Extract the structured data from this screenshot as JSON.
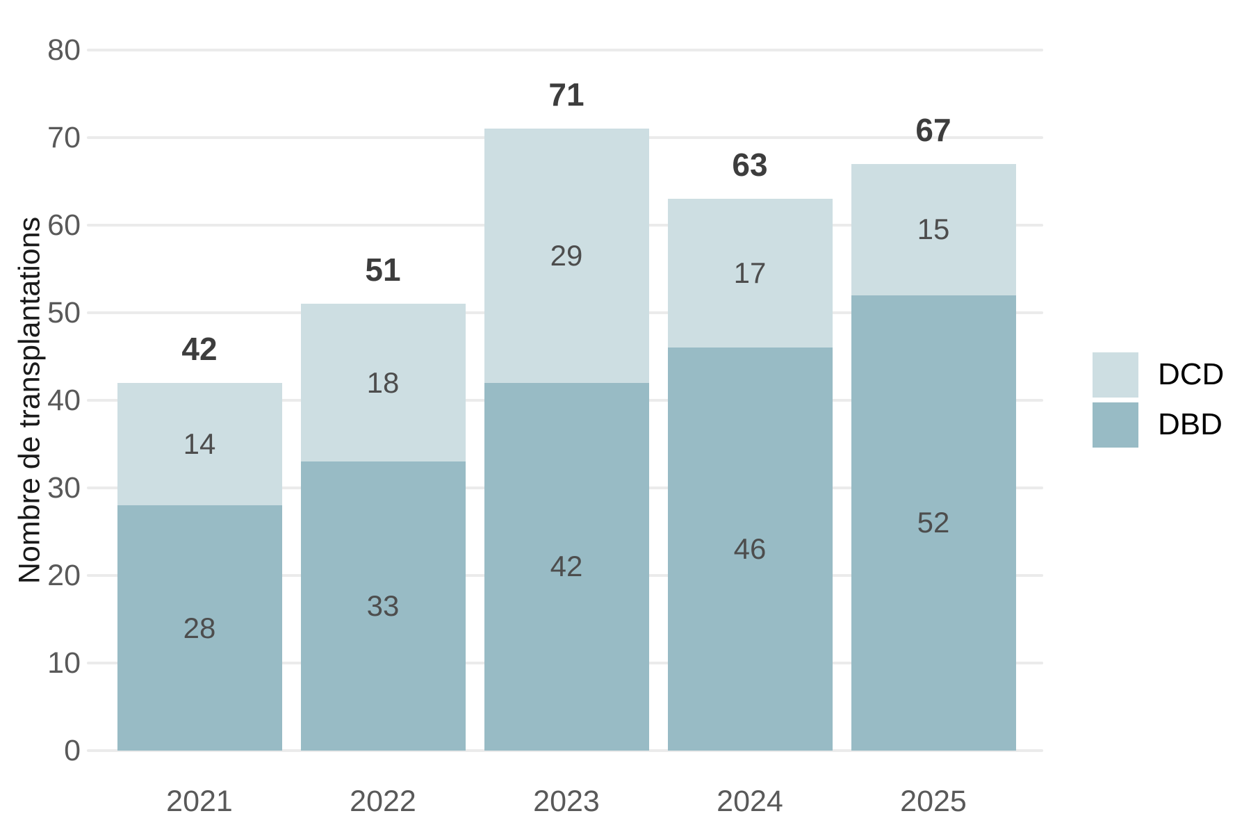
{
  "chart_data": {
    "type": "bar",
    "subtype": "stacked",
    "title": "",
    "xlabel": "",
    "ylabel": "Nombre de transplantations",
    "categories": [
      "2021",
      "2022",
      "2023",
      "2024",
      "2025"
    ],
    "series": [
      {
        "name": "DBD",
        "color": "#98bbc5",
        "values": [
          28,
          33,
          42,
          46,
          52
        ]
      },
      {
        "name": "DCD",
        "color": "#cddee2",
        "values": [
          14,
          18,
          29,
          17,
          15
        ]
      }
    ],
    "totals": [
      42,
      51,
      71,
      63,
      67
    ],
    "ylim": [
      0,
      80
    ],
    "yticks": [
      0,
      10,
      20,
      30,
      40,
      50,
      60,
      70,
      80
    ],
    "grid": "horizontal",
    "legend": {
      "position": "right",
      "entries": [
        "DCD",
        "DBD"
      ]
    }
  },
  "style": {
    "background": "#ffffff",
    "gridline_color": "#ebebeb",
    "tick_label_color": "#595959",
    "axis_title_color": "#1a1a1a",
    "total_label_color": "#3d3d3d",
    "segment_label_color": "#4d4d4d",
    "legend_text_color": "#000000"
  }
}
